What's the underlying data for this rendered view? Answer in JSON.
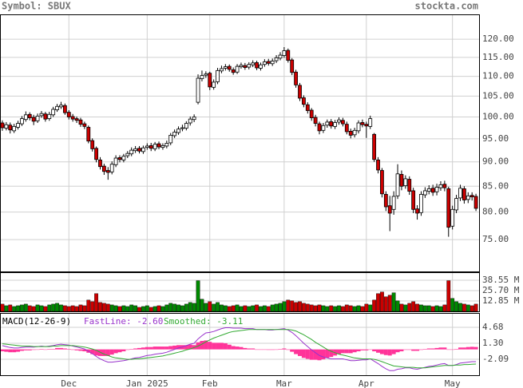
{
  "header": {
    "symbol": "Symbol: SBUX",
    "site": "stockta.com"
  },
  "chart_data": [
    {
      "type": "candlestick",
      "log_scale": true,
      "grid": true,
      "up_color": "#ffffff",
      "down_color": "#cc0000",
      "xlim": [
        -0.6,
        121.8
      ],
      "xticks": [
        {
          "value": 17,
          "label": "Dec"
        },
        {
          "value": 37,
          "label": "Jan 2025"
        },
        {
          "value": 53,
          "label": "Feb"
        },
        {
          "value": 72,
          "label": "Mar"
        },
        {
          "value": 93,
          "label": "Apr"
        },
        {
          "value": 115,
          "label": "May"
        }
      ],
      "ylim": [
        69.6,
        127.2
      ],
      "yticks": [
        {
          "value": 75,
          "label": "75.00"
        },
        {
          "value": 80,
          "label": "80.00"
        },
        {
          "value": 85,
          "label": "85.00"
        },
        {
          "value": 90,
          "label": "90.00"
        },
        {
          "value": 95,
          "label": "95.00"
        },
        {
          "value": 100,
          "label": "100.00"
        },
        {
          "value": 105,
          "label": "105.00"
        },
        {
          "value": 110,
          "label": "110.00"
        },
        {
          "value": 115,
          "label": "115.00"
        },
        {
          "value": 120,
          "label": "120.00"
        }
      ],
      "open": [
        98.6,
        97.4,
        98.1,
        96.8,
        97.6,
        98.4,
        99.4,
        100.6,
        99.9,
        99.1,
        100.3,
        100.7,
        99.6,
        100.5,
        101.7,
        102.4,
        102.7,
        101.1,
        100.1,
        99.6,
        99.3,
        98.4,
        97.6,
        94.6,
        92.9,
        90.4,
        89.1,
        88.2,
        87.9,
        89.4,
        90.9,
        90.4,
        91.3,
        91.7,
        92.4,
        92.9,
        92.2,
        93.1,
        93.5,
        92.8,
        93.9,
        93.1,
        93.4,
        94.1,
        95.7,
        96.4,
        97.3,
        97.4,
        98.6,
        99.4,
        103.5,
        109.4,
        110.3,
        110.8,
        107.2,
        108.6,
        111.4,
        112.1,
        112.6,
        111.7,
        111.1,
        112.5,
        112.8,
        112.4,
        113.0,
        113.6,
        112.1,
        113.1,
        113.9,
        113.3,
        114.1,
        114.8,
        115.5,
        116.9,
        114.3,
        111.1,
        107.7,
        104.6,
        102.9,
        101.6,
        99.9,
        98.4,
        96.9,
        98.1,
        98.9,
        97.8,
        98.8,
        99.2,
        98.3,
        96.7,
        95.9,
        96.8,
        98.7,
        98.3,
        97.8,
        96.0,
        90.4,
        88.2,
        83.4,
        81.2,
        80.5,
        83.1,
        87.4,
        85.1,
        86.4,
        84.1,
        80.6,
        79.9,
        83.3,
        84.0,
        84.6,
        83.9,
        84.7,
        85.4,
        84.5,
        77.4,
        80.4,
        82.7,
        84.5,
        82.4,
        83.2,
        83.0
      ],
      "high": [
        99.2,
        98.8,
        98.7,
        98.4,
        99.1,
        100.2,
        101.3,
        101.1,
        100.5,
        100.8,
        101.4,
        101.2,
        101.2,
        102.4,
        103.1,
        103.6,
        103.2,
        101.6,
        100.7,
        100.1,
        99.8,
        98.9,
        98.0,
        95.1,
        93.3,
        91.0,
        89.6,
        88.9,
        90.1,
        91.4,
        91.4,
        91.7,
        92.3,
        93.1,
        93.4,
        93.4,
        93.5,
        94.0,
        94.1,
        94.3,
        94.4,
        94.0,
        94.6,
        96.3,
        97.1,
        97.8,
        98.2,
        99.0,
        100.1,
        100.6,
        110.5,
        111.5,
        111.3,
        111.2,
        109.2,
        112.2,
        112.8,
        113.2,
        113.1,
        112.3,
        113.2,
        113.6,
        113.5,
        113.7,
        114.2,
        114.1,
        113.6,
        114.5,
        114.6,
        114.7,
        115.6,
        116.4,
        117.8,
        117.4,
        114.8,
        111.7,
        108.3,
        105.2,
        103.5,
        102.1,
        100.5,
        98.9,
        98.6,
        99.4,
        99.5,
        99.3,
        99.9,
        99.8,
        98.9,
        97.3,
        97.5,
        99.2,
        99.4,
        98.9,
        100.3,
        96.3,
        91.0,
        88.7,
        84.0,
        83.1,
        84.0,
        89.5,
        88.2,
        87.2,
        87.0,
        84.7,
        81.3,
        84.0,
        84.8,
        85.2,
        85.3,
        85.5,
        86.0,
        86.1,
        84.9,
        81.2,
        83.3,
        85.3,
        85.0,
        83.8,
        83.8,
        83.5
      ],
      "low": [
        96.8,
        96.9,
        96.2,
        96.3,
        97.1,
        97.9,
        98.9,
        99.2,
        98.1,
        98.6,
        99.8,
        98.9,
        99.1,
        100.0,
        101.2,
        101.9,
        100.5,
        99.4,
        98.9,
        98.6,
        97.7,
        97.2,
        94.0,
        92.2,
        89.9,
        88.4,
        87.3,
        86.3,
        87.4,
        88.9,
        89.9,
        89.9,
        90.8,
        91.2,
        91.9,
        91.8,
        91.7,
        92.6,
        92.3,
        92.3,
        92.7,
        92.6,
        92.9,
        93.6,
        95.2,
        95.9,
        96.7,
        96.9,
        98.0,
        98.8,
        103.0,
        108.7,
        109.6,
        106.5,
        106.6,
        108.0,
        110.8,
        111.5,
        111.2,
        110.4,
        110.6,
        112.0,
        111.7,
        111.8,
        112.4,
        111.6,
        111.5,
        112.5,
        112.8,
        112.7,
        113.5,
        114.2,
        114.9,
        113.6,
        110.3,
        107.1,
        103.8,
        102.3,
        100.8,
        99.1,
        97.8,
        96.0,
        96.3,
        97.5,
        97.3,
        97.2,
        98.2,
        97.8,
        96.0,
        95.1,
        95.3,
        96.2,
        97.6,
        95.2,
        97.2,
        90.0,
        87.6,
        82.8,
        80.2,
        76.5,
        79.5,
        82.5,
        84.2,
        84.5,
        83.3,
        79.8,
        78.6,
        79.3,
        82.7,
        83.4,
        83.1,
        83.2,
        84.1,
        84.0,
        75.5,
        76.8,
        79.8,
        82.1,
        81.6,
        81.7,
        82.2,
        80.2
      ],
      "close": [
        97.5,
        98.2,
        97.0,
        97.8,
        98.5,
        99.6,
        100.5,
        99.8,
        99.0,
        100.2,
        100.8,
        99.5,
        100.6,
        101.8,
        102.5,
        102.8,
        101.0,
        100.0,
        99.5,
        99.2,
        98.3,
        97.8,
        94.5,
        92.8,
        90.5,
        89.0,
        88.0,
        87.8,
        89.5,
        90.8,
        90.5,
        91.2,
        91.8,
        92.5,
        92.8,
        92.3,
        93.0,
        93.4,
        92.9,
        93.8,
        93.2,
        93.5,
        94.0,
        95.8,
        96.5,
        97.2,
        97.5,
        98.5,
        99.5,
        100.0,
        109.5,
        110.2,
        110.6,
        107.3,
        108.5,
        111.5,
        112.0,
        112.5,
        111.8,
        111.0,
        112.6,
        112.9,
        112.3,
        113.1,
        113.5,
        112.2,
        113.0,
        113.8,
        113.4,
        114.0,
        114.9,
        115.6,
        116.8,
        114.2,
        111.0,
        107.8,
        104.5,
        103.0,
        101.5,
        99.8,
        98.5,
        96.8,
        98.0,
        98.8,
        97.9,
        98.7,
        99.3,
        98.4,
        96.6,
        95.8,
        96.9,
        98.6,
        98.2,
        97.9,
        99.6,
        90.5,
        88.3,
        83.5,
        81.0,
        79.8,
        83.0,
        87.5,
        85.0,
        86.5,
        84.0,
        80.5,
        79.8,
        83.4,
        84.1,
        84.5,
        83.8,
        84.8,
        85.3,
        84.7,
        77.2,
        80.5,
        82.6,
        84.6,
        82.3,
        83.1,
        82.9,
        80.7
      ]
    },
    {
      "type": "volume",
      "up_color": "#008800",
      "down_color": "#cc0000",
      "ylim": [
        0,
        48.4
      ],
      "yticks": [
        {
          "value": 12.85,
          "label": "12.85 M"
        },
        {
          "value": 25.7,
          "label": "25.70 M"
        },
        {
          "value": 38.55,
          "label": "38.55 M"
        }
      ],
      "values": [
        9,
        7,
        8,
        6,
        7,
        8,
        9,
        7,
        6,
        8,
        7,
        6,
        8,
        9,
        10,
        8,
        7,
        6,
        7,
        6,
        8,
        7,
        14,
        12,
        22,
        11,
        10,
        9,
        8,
        7,
        6,
        7,
        6,
        8,
        7,
        5,
        6,
        7,
        5,
        6,
        7,
        6,
        8,
        10,
        9,
        8,
        7,
        9,
        11,
        10,
        38,
        15,
        10,
        12,
        9,
        11,
        8,
        7,
        6,
        7,
        8,
        6,
        7,
        6,
        7,
        8,
        6,
        7,
        6,
        8,
        9,
        10,
        12,
        14,
        13,
        11,
        12,
        10,
        9,
        8,
        7,
        8,
        7,
        6,
        7,
        6,
        7,
        6,
        8,
        7,
        6,
        7,
        6,
        9,
        8,
        14,
        22,
        24,
        18,
        20,
        23,
        13,
        9,
        8,
        10,
        12,
        9,
        8,
        7,
        7,
        6,
        7,
        6,
        8,
        38,
        16,
        12,
        10,
        9,
        8,
        7,
        9
      ]
    },
    {
      "type": "macd",
      "title": "MACD(12-26-9)",
      "histogram_color": "#ff3399",
      "ylim": [
        -5.47,
        7.72
      ],
      "yticks": [
        -2.09,
        {
          "value": 1.3,
          "label": "1.30"
        },
        4.68
      ],
      "series": [
        {
          "name": "FastLine: -2.60",
          "color": "#9933cc",
          "values": [
            0.8,
            0.6,
            0.4,
            0.3,
            0.3,
            0.4,
            0.5,
            0.5,
            0.5,
            0.6,
            0.7,
            0.6,
            0.7,
            0.8,
            1.0,
            1.1,
            1.0,
            0.9,
            0.7,
            0.5,
            0.3,
            0.1,
            -0.4,
            -0.9,
            -1.5,
            -2.0,
            -2.4,
            -2.7,
            -2.7,
            -2.6,
            -2.5,
            -2.4,
            -2.2,
            -2.0,
            -1.8,
            -1.7,
            -1.5,
            -1.3,
            -1.2,
            -1.0,
            -0.9,
            -0.8,
            -0.6,
            -0.3,
            0.0,
            0.3,
            0.5,
            0.8,
            1.1,
            1.3,
            2.2,
            2.9,
            3.5,
            3.6,
            3.8,
            4.1,
            4.4,
            4.6,
            4.6,
            4.5,
            4.5,
            4.5,
            4.4,
            4.4,
            4.4,
            4.2,
            4.2,
            4.2,
            4.1,
            4.1,
            4.2,
            4.3,
            4.4,
            4.1,
            3.6,
            2.9,
            2.1,
            1.3,
            0.6,
            -0.1,
            -0.7,
            -1.3,
            -1.6,
            -1.8,
            -2.0,
            -2.0,
            -2.0,
            -2.0,
            -2.2,
            -2.4,
            -2.4,
            -2.3,
            -2.2,
            -2.2,
            -2.0,
            -2.5,
            -3.0,
            -3.6,
            -4.1,
            -4.5,
            -4.5,
            -4.2,
            -4.1,
            -3.9,
            -3.9,
            -4.1,
            -4.2,
            -4.0,
            -3.8,
            -3.6,
            -3.5,
            -3.3,
            -3.1,
            -3.0,
            -3.4,
            -3.4,
            -3.2,
            -2.9,
            -2.8,
            -2.7,
            -2.6,
            -2.6
          ]
        },
        {
          "name": "Smoothed: -3.11",
          "color": "#33aa33",
          "values": [
            1.2,
            1.1,
            1.0,
            0.9,
            0.8,
            0.7,
            0.7,
            0.7,
            0.6,
            0.6,
            0.6,
            0.6,
            0.6,
            0.7,
            0.7,
            0.8,
            0.8,
            0.8,
            0.8,
            0.7,
            0.6,
            0.5,
            0.3,
            0.1,
            -0.2,
            -0.6,
            -1.0,
            -1.3,
            -1.6,
            -1.8,
            -1.9,
            -2.0,
            -2.1,
            -2.1,
            -2.0,
            -2.0,
            -1.9,
            -1.8,
            -1.7,
            -1.6,
            -1.5,
            -1.4,
            -1.2,
            -1.0,
            -0.8,
            -0.6,
            -0.4,
            -0.1,
            0.1,
            0.4,
            0.7,
            1.1,
            1.6,
            2.0,
            2.4,
            2.7,
            3.0,
            3.3,
            3.6,
            3.8,
            3.9,
            4.0,
            4.1,
            4.2,
            4.2,
            4.2,
            4.2,
            4.2,
            4.2,
            4.2,
            4.2,
            4.2,
            4.2,
            4.2,
            4.1,
            3.9,
            3.5,
            3.1,
            2.6,
            2.1,
            1.5,
            1.0,
            0.5,
            0.0,
            -0.4,
            -0.7,
            -1.0,
            -1.2,
            -1.4,
            -1.6,
            -1.8,
            -1.9,
            -2.0,
            -2.0,
            -2.0,
            -2.1,
            -2.3,
            -2.6,
            -2.9,
            -3.2,
            -3.5,
            -3.6,
            -3.7,
            -3.8,
            -3.8,
            -3.8,
            -3.9,
            -3.9,
            -3.9,
            -3.8,
            -3.7,
            -3.6,
            -3.5,
            -3.4,
            -3.4,
            -3.4,
            -3.3,
            -3.3,
            -3.2,
            -3.2,
            -3.15,
            -3.11
          ]
        }
      ]
    }
  ]
}
